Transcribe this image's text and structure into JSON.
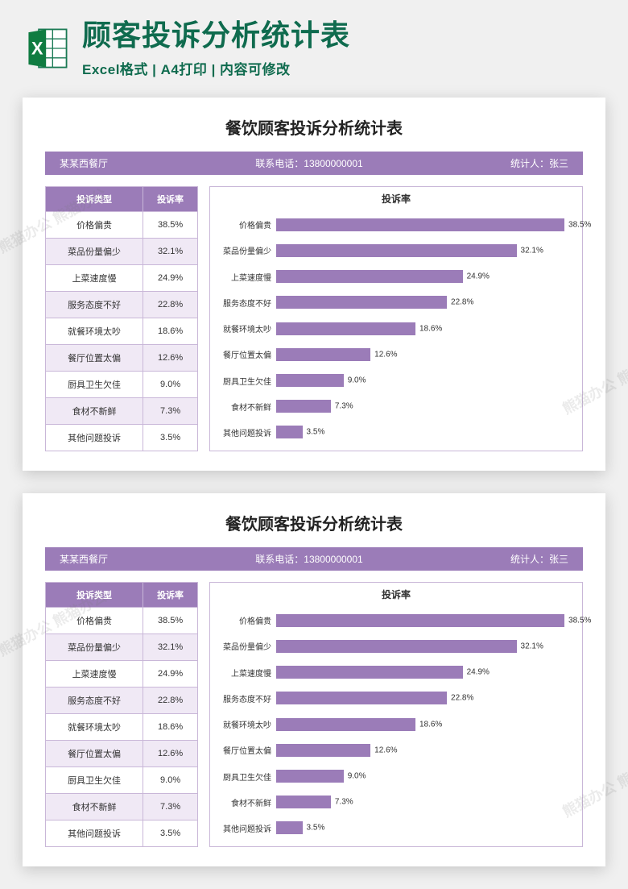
{
  "header": {
    "main_title": "顾客投诉分析统计表",
    "sub_title": "Excel格式 | A4打印 | 内容可修改",
    "title_color": "#0f6b4e"
  },
  "document": {
    "page_title": "餐饮顾客投诉分析统计表",
    "info": {
      "restaurant": "某某西餐厅",
      "phone_label": "联系电话：",
      "phone": "13800000001",
      "stat_label": "统计人：",
      "stat_person": "张三"
    },
    "table": {
      "col1": "投诉类型",
      "col2": "投诉率"
    },
    "chart": {
      "title": "投诉率",
      "bar_color": "#9b7cb8",
      "xmax": 40,
      "background": "#ffffff",
      "border_color": "#c9b7d8"
    },
    "rows": [
      {
        "label": "价格偏贵",
        "value": 38.5,
        "display": "38.5%"
      },
      {
        "label": "菜品份量偏少",
        "value": 32.1,
        "display": "32.1%"
      },
      {
        "label": "上菜速度慢",
        "value": 24.9,
        "display": "24.9%"
      },
      {
        "label": "服务态度不好",
        "value": 22.8,
        "display": "22.8%"
      },
      {
        "label": "就餐环境太吵",
        "value": 18.6,
        "display": "18.6%"
      },
      {
        "label": "餐厅位置太偏",
        "value": 12.6,
        "display": "12.6%"
      },
      {
        "label": "厨具卫生欠佳",
        "value": 9.0,
        "display": "9.0%"
      },
      {
        "label": "食材不新鲜",
        "value": 7.3,
        "display": "7.3%"
      },
      {
        "label": "其他问题投诉",
        "value": 3.5,
        "display": "3.5%"
      }
    ],
    "alt_row_bg": "#f0e9f5",
    "header_bg": "#9b7cb8"
  },
  "watermark": "熊猫办公 熊猫办公"
}
